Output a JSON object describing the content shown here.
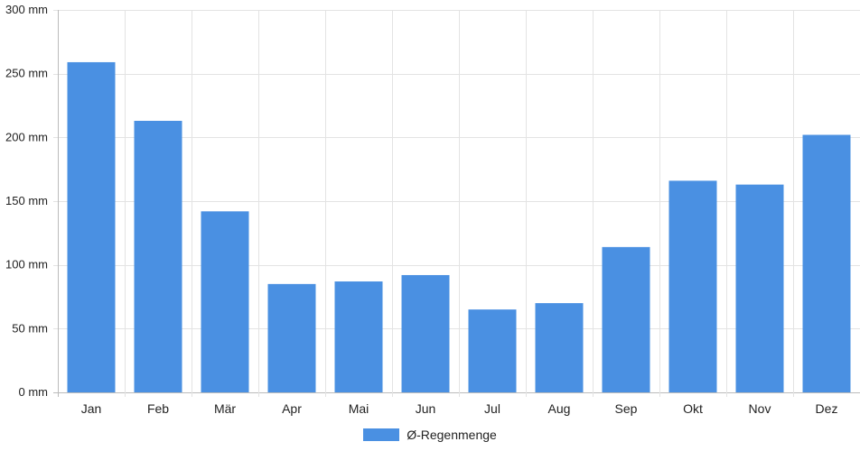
{
  "chart_data": {
    "type": "bar",
    "categories": [
      "Jan",
      "Feb",
      "Mär",
      "Apr",
      "Mai",
      "Jun",
      "Jul",
      "Aug",
      "Sep",
      "Okt",
      "Nov",
      "Dez"
    ],
    "series": [
      {
        "name": "Ø-Regenmenge",
        "values": [
          259,
          213,
          142,
          85,
          87,
          92,
          65,
          70,
          114,
          166,
          163,
          202
        ],
        "color": "#4a90e2"
      }
    ],
    "ylim": [
      0,
      300
    ],
    "yticks": [
      0,
      50,
      100,
      150,
      200,
      250,
      300
    ],
    "yunit": "mm",
    "grid": true,
    "legend_position": "bottom-center"
  }
}
